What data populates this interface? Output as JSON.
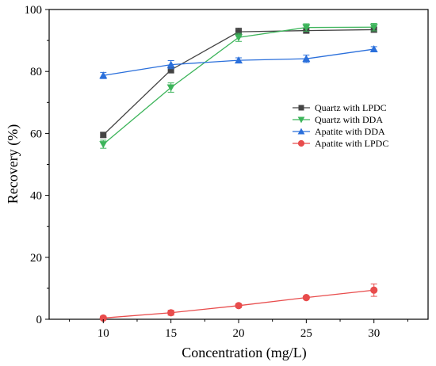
{
  "chart_data": {
    "type": "line",
    "title": "",
    "xlabel": "Concentration (mg/L)",
    "ylabel": "Recovery (%)",
    "x": [
      10,
      15,
      20,
      25,
      30
    ],
    "xlim": [
      6,
      34
    ],
    "ylim": [
      0,
      100
    ],
    "xticks": [
      "10",
      "15",
      "20",
      "25",
      "30"
    ],
    "yticks": [
      "0",
      "20",
      "40",
      "60",
      "80",
      "100"
    ],
    "grid": false,
    "legend_position": "right",
    "series": [
      {
        "name": "Quartz with LPDC",
        "color": "#444444",
        "marker": "square",
        "values": [
          59.5,
          80.5,
          92.8,
          93.2,
          93.5
        ],
        "errors": [
          0.8,
          1.0,
          1.2,
          0.8,
          0.8
        ]
      },
      {
        "name": "Quartz with DDA",
        "color": "#3cb45a",
        "marker": "triangle-down",
        "values": [
          56.5,
          74.8,
          91.0,
          94.2,
          94.3
        ],
        "errors": [
          1.3,
          1.5,
          1.3,
          1.2,
          1.2
        ]
      },
      {
        "name": "Apatite with DDA",
        "color": "#2a6fdb",
        "marker": "triangle-up",
        "values": [
          78.7,
          82.2,
          83.6,
          84.1,
          87.2
        ],
        "errors": [
          1.0,
          1.3,
          0.8,
          1.2,
          0.8
        ]
      },
      {
        "name": "Apatite with LPDC",
        "color": "#e84c4c",
        "marker": "circle",
        "values": [
          0.4,
          2.1,
          4.4,
          7.0,
          9.4
        ],
        "errors": [
          0.6,
          0.8,
          0.6,
          0.5,
          2.0
        ]
      }
    ]
  }
}
